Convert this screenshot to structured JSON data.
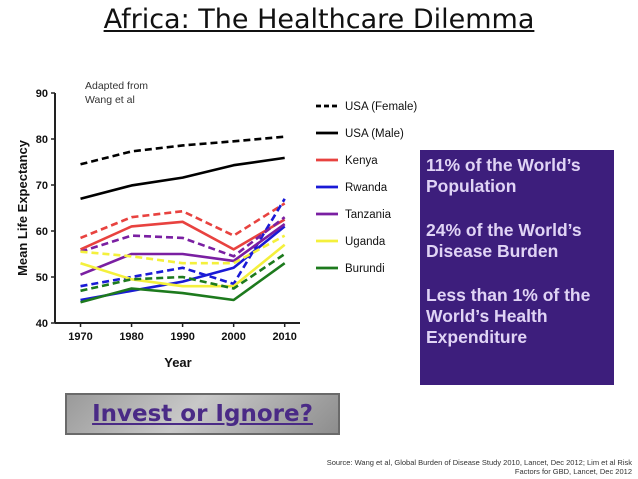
{
  "title": "Africa: The Healthcare Dilemma",
  "chart_data": {
    "type": "line",
    "annotation": "Adapted from",
    "annotation_line2": "Wang et al",
    "xlabel": "Year",
    "ylabel": "Mean Life Expectancy",
    "x": [
      1970,
      1980,
      1990,
      2000,
      2010
    ],
    "xticks": [
      "1970",
      "1980",
      "1990",
      "2000",
      "2010"
    ],
    "yticks": [
      "40",
      "50",
      "60",
      "70",
      "80",
      "90"
    ],
    "ylim": [
      40,
      90
    ],
    "xlim": [
      1965,
      2013
    ],
    "series": [
      {
        "name": "USA (Female)",
        "color": "#000000",
        "style": "dashed",
        "values": [
          74.5,
          77.3,
          78.6,
          79.5,
          80.5
        ]
      },
      {
        "name": "USA (Male)",
        "color": "#000000",
        "style": "solid",
        "values": [
          67,
          69.9,
          71.6,
          74.3,
          75.9
        ]
      },
      {
        "name": "Kenya",
        "color": "#e8423f",
        "style": "solid",
        "values": [
          56,
          61,
          62,
          56,
          62.5
        ]
      },
      {
        "name": "Kenya (dashed)",
        "color": "#e8423f",
        "style": "dashed",
        "values": [
          58.5,
          63,
          64.3,
          59,
          66
        ],
        "legend": false
      },
      {
        "name": "Rwanda",
        "color": "#1a1ad6",
        "style": "solid",
        "values": [
          45,
          47,
          49,
          52,
          61
        ]
      },
      {
        "name": "Rwanda (dashed)",
        "color": "#1a1ad6",
        "style": "dashed",
        "values": [
          48,
          50,
          52,
          48.5,
          67
        ],
        "legend": false
      },
      {
        "name": "Tanzania",
        "color": "#7a1fa2",
        "style": "solid",
        "values": [
          50.5,
          55,
          55,
          53.5,
          61.5
        ]
      },
      {
        "name": "Tanzania (dashed)",
        "color": "#7a1fa2",
        "style": "dashed",
        "values": [
          55.5,
          59,
          58.5,
          54.5,
          63
        ],
        "legend": false
      },
      {
        "name": "Uganda",
        "color": "#f4f03c",
        "style": "solid",
        "values": [
          53,
          49.5,
          48,
          48,
          57
        ]
      },
      {
        "name": "Uganda (dashed)",
        "color": "#f4f03c",
        "style": "dashed",
        "values": [
          55.5,
          54.5,
          53,
          53,
          59
        ],
        "legend": false
      },
      {
        "name": "Burundi",
        "color": "#1d7a1d",
        "style": "solid",
        "values": [
          44.5,
          47.5,
          46.5,
          45,
          53
        ]
      },
      {
        "name": "Burundi (dashed)",
        "color": "#1d7a1d",
        "style": "dashed",
        "values": [
          47,
          49.5,
          50,
          47.5,
          55
        ],
        "legend": false
      }
    ]
  },
  "info_box": {
    "line1": "11% of the World’s Population",
    "line2": "24% of the World’s Disease Burden",
    "line3": "Less than 1% of the World’s Health Expenditure"
  },
  "button_label": "Invest or Ignore?",
  "source_line1": "Source: Wang et al, Global Burden of Disease Study 2010, Lancet, Dec 2012; Lim et al Risk",
  "source_line2": "Factors for GBD, Lancet, Dec 2012"
}
